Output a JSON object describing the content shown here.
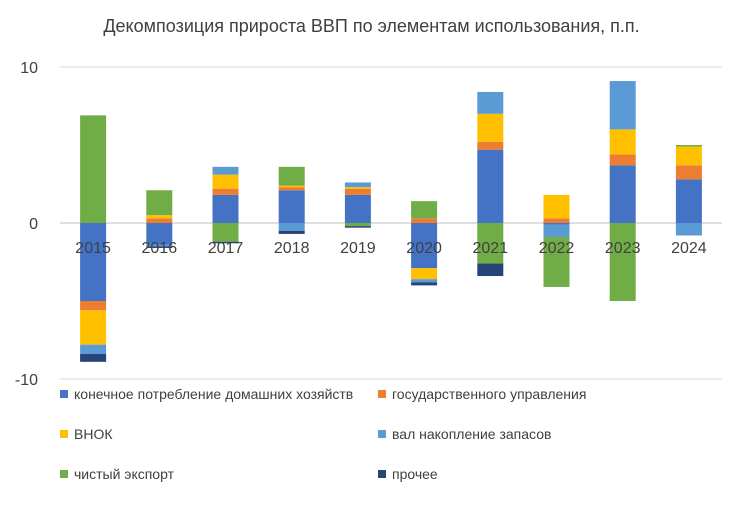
{
  "chart_data": {
    "type": "bar",
    "stacked": true,
    "title": "Декомпозиция прироста ВВП по элементам использования, п.п.",
    "xlabel": "",
    "ylabel": "",
    "ylim": [
      -10,
      10
    ],
    "yticks": [
      -10,
      0,
      10
    ],
    "grid": true,
    "legend_position": "bottom",
    "categories": [
      "2015",
      "2016",
      "2017",
      "2018",
      "2019",
      "2020",
      "2021",
      "2022",
      "2023",
      "2024"
    ],
    "series": [
      {
        "name": "конечное потребление домашних хозяйств",
        "color": "#4472C4",
        "values": [
          -5.0,
          -1.4,
          1.8,
          2.1,
          1.8,
          -2.9,
          4.7,
          -0.1,
          3.7,
          2.8
        ]
      },
      {
        "name": "государственного управления",
        "color": "#ED7D31",
        "values": [
          -0.6,
          0.3,
          0.4,
          0.2,
          0.4,
          0.3,
          0.5,
          0.3,
          0.7,
          0.9
        ]
      },
      {
        "name": "ВНОК",
        "color": "#FFC000",
        "values": [
          -2.2,
          0.2,
          0.9,
          0.1,
          0.1,
          -0.7,
          1.8,
          1.5,
          1.6,
          1.2
        ]
      },
      {
        "name": "вал накопление запасов",
        "color": "#5B9BD5",
        "values": [
          -0.6,
          -0.1,
          0.5,
          -0.5,
          0.3,
          -0.2,
          1.4,
          -0.8,
          3.1,
          -0.8
        ]
      },
      {
        "name": "чистый экспорт",
        "color": "#70AD47",
        "values": [
          6.9,
          1.6,
          -1.2,
          1.2,
          -0.2,
          1.1,
          -2.6,
          -3.2,
          -5.0,
          0.1
        ]
      },
      {
        "name": "прочее",
        "color": "#264478",
        "values": [
          -0.5,
          -0.1,
          -0.1,
          -0.2,
          -0.1,
          -0.2,
          -0.8,
          0.0,
          0.0,
          0.0
        ]
      }
    ]
  }
}
